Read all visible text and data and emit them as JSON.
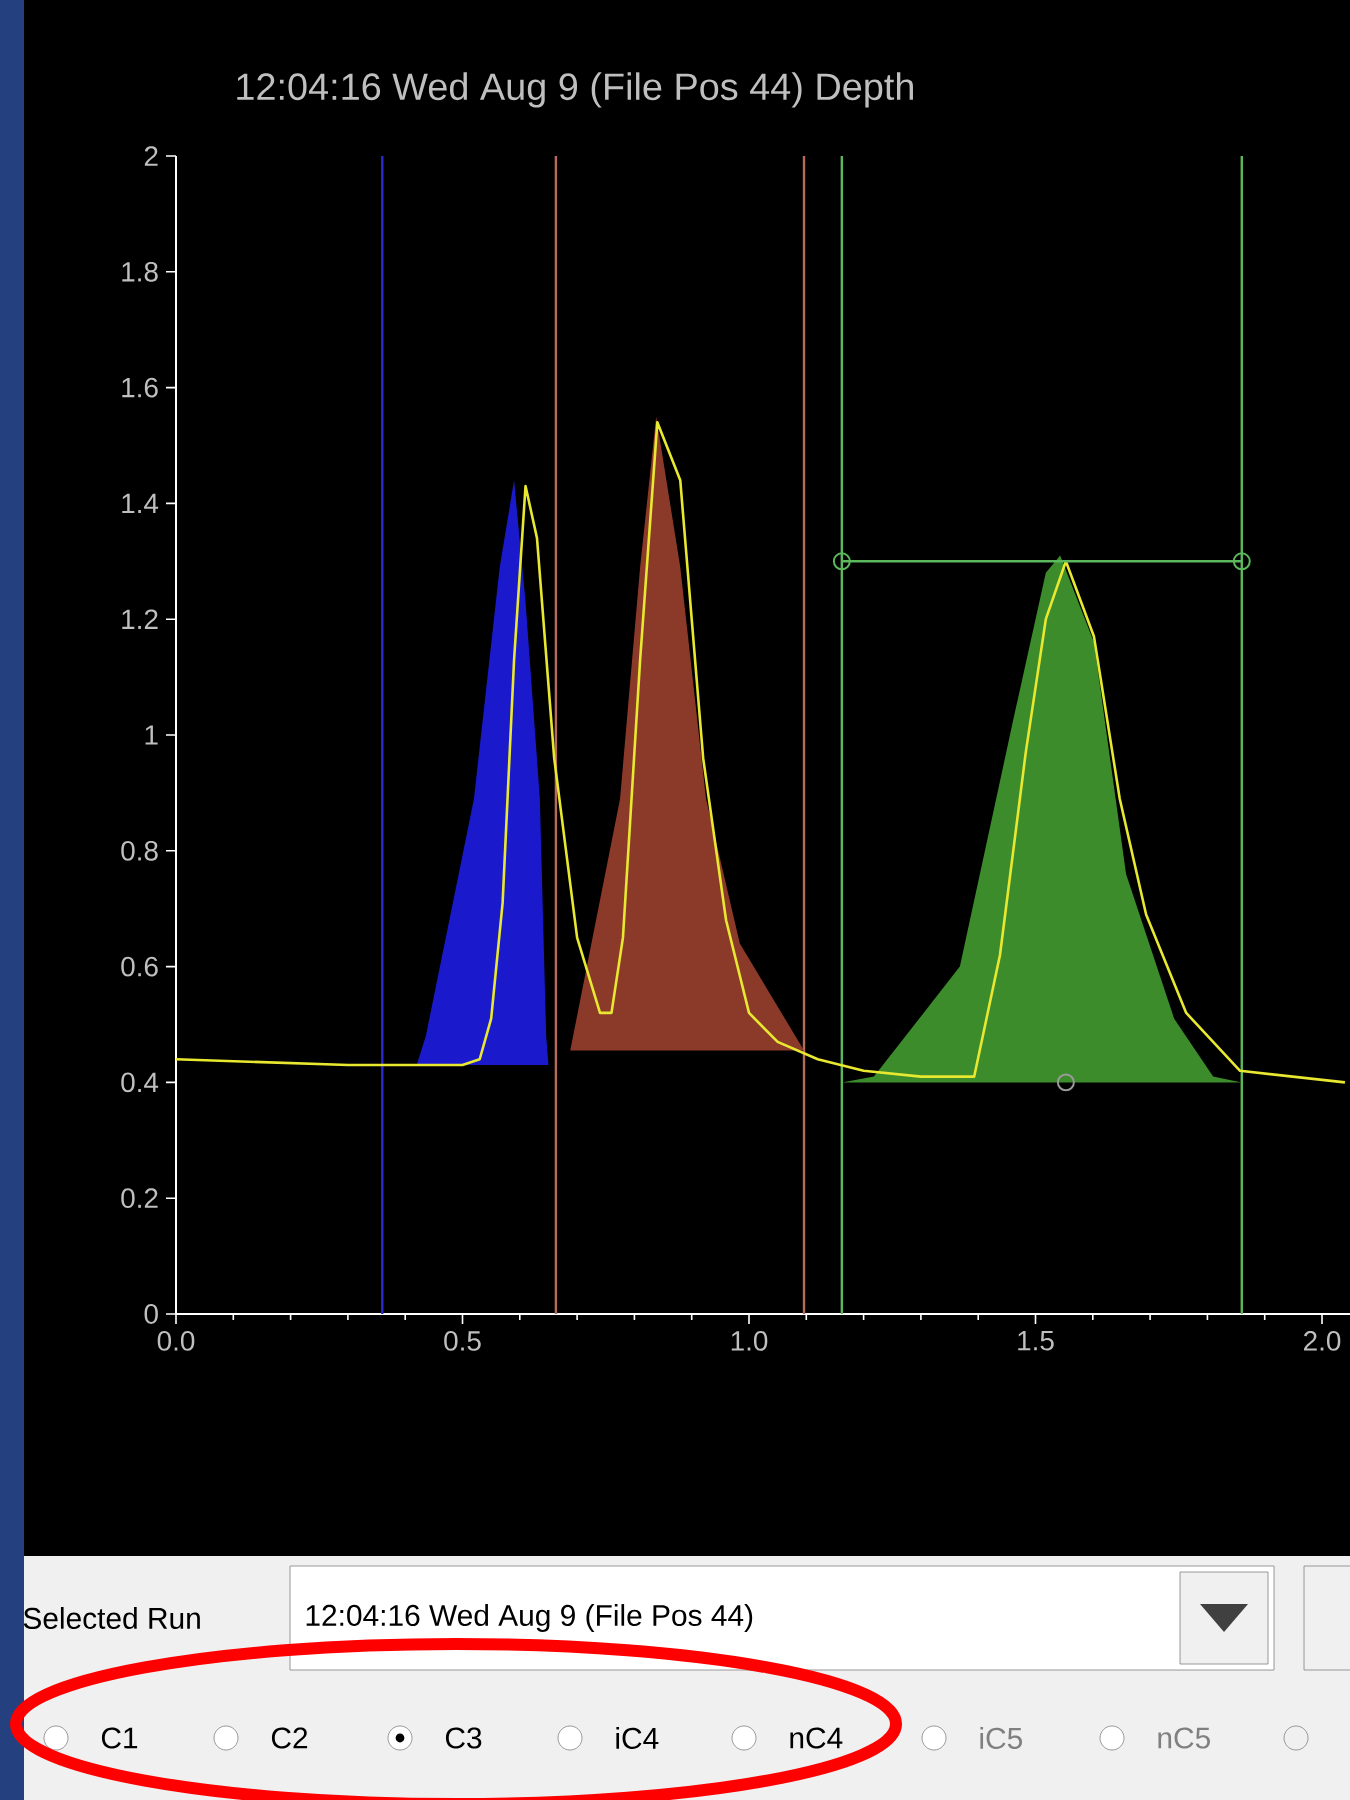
{
  "chart_data": {
    "type": "line",
    "title": "12:04:16 Wed Aug 9 (File Pos 44) Depth",
    "xlim": [
      0,
      2.05
    ],
    "ylim": [
      0,
      2
    ],
    "xticks": [
      {
        "value": 0,
        "label": "0.0"
      },
      {
        "value": 0.5,
        "label": "0.5"
      },
      {
        "value": 1,
        "label": "1.0"
      },
      {
        "value": 1.5,
        "label": "1.5"
      },
      {
        "value": 2,
        "label": "2.0"
      }
    ],
    "yticks": [
      0,
      0.2,
      0.4,
      0.6,
      0.8,
      1,
      1.2,
      1.4,
      1.6,
      1.8,
      2
    ],
    "grid": false,
    "series": [
      {
        "type": "area",
        "color": "#1a1acc",
        "x": [
          0.42,
          0.436,
          0.52,
          0.565,
          0.59,
          0.61,
          0.635,
          0.646,
          0.65
        ],
        "values": [
          0.43,
          0.48,
          0.89,
          1.29,
          1.44,
          1.23,
          0.89,
          0.48,
          0.43
        ]
      },
      {
        "type": "area",
        "color": "#8b3a2a",
        "x": [
          0.688,
          0.775,
          0.81,
          0.838,
          0.88,
          0.925,
          0.984,
          1.096
        ],
        "values": [
          0.455,
          0.89,
          1.29,
          1.55,
          1.29,
          0.89,
          0.64,
          0.455
        ]
      },
      {
        "type": "area",
        "color": "#3c8c2c",
        "x": [
          1.162,
          1.218,
          1.368,
          1.462,
          1.518,
          1.543,
          1.602,
          1.658,
          1.742,
          1.81,
          1.86
        ],
        "values": [
          0.4,
          0.41,
          0.6,
          1.03,
          1.28,
          1.31,
          1.16,
          0.76,
          0.51,
          0.41,
          0.4
        ]
      },
      {
        "color": "#e8e830",
        "marker": "none",
        "line_style": "solid",
        "x": [
          0,
          0.3,
          0.5,
          0.53,
          0.55,
          0.57,
          0.59,
          0.61,
          0.63,
          0.66,
          0.7,
          0.74,
          0.76,
          0.78,
          0.81,
          0.84,
          0.88,
          0.92,
          0.96,
          1.0,
          1.05,
          1.12,
          1.2,
          1.3,
          1.393,
          1.438,
          1.483,
          1.518,
          1.553,
          1.602,
          1.647,
          1.693,
          1.763,
          1.857,
          2.04
        ],
        "values": [
          0.44,
          0.43,
          0.43,
          0.44,
          0.51,
          0.71,
          1.13,
          1.43,
          1.34,
          0.96,
          0.65,
          0.52,
          0.52,
          0.65,
          1.13,
          1.54,
          1.44,
          0.96,
          0.68,
          0.52,
          0.47,
          0.44,
          0.42,
          0.41,
          0.41,
          0.62,
          0.97,
          1.2,
          1.3,
          1.17,
          0.89,
          0.69,
          0.52,
          0.42,
          0.4
        ]
      },
      {
        "type": "line",
        "color": "#5cb85c",
        "marker": "circle",
        "line_style": "solid",
        "x": [
          1.162,
          1.86
        ],
        "values": [
          1.3,
          1.3
        ]
      },
      {
        "type": "scatter",
        "color": "#9a9a9a",
        "marker": "circle",
        "x": [
          1.553
        ],
        "values": [
          0.4
        ]
      }
    ],
    "ref_lines": [
      {
        "axis": "x",
        "value": 0.36,
        "color": "#2a2ad0",
        "line_style": "solid"
      },
      {
        "axis": "x",
        "value": 0.663,
        "color": "#b86a5a",
        "line_style": "solid"
      },
      {
        "axis": "x",
        "value": 1.096,
        "color": "#b86a5a",
        "line_style": "solid"
      },
      {
        "axis": "x",
        "value": 1.162,
        "color": "#5cb85c",
        "line_style": "solid"
      },
      {
        "axis": "x",
        "value": 1.86,
        "color": "#5cb85c",
        "line_style": "solid"
      }
    ],
    "annotations": [
      "Selected Run",
      "12:04:16 Wed Aug 9 (File Pos 44)",
      "C1",
      "C2",
      "C3",
      "iC4",
      "nC4",
      "iC5",
      "nC5"
    ]
  }
}
